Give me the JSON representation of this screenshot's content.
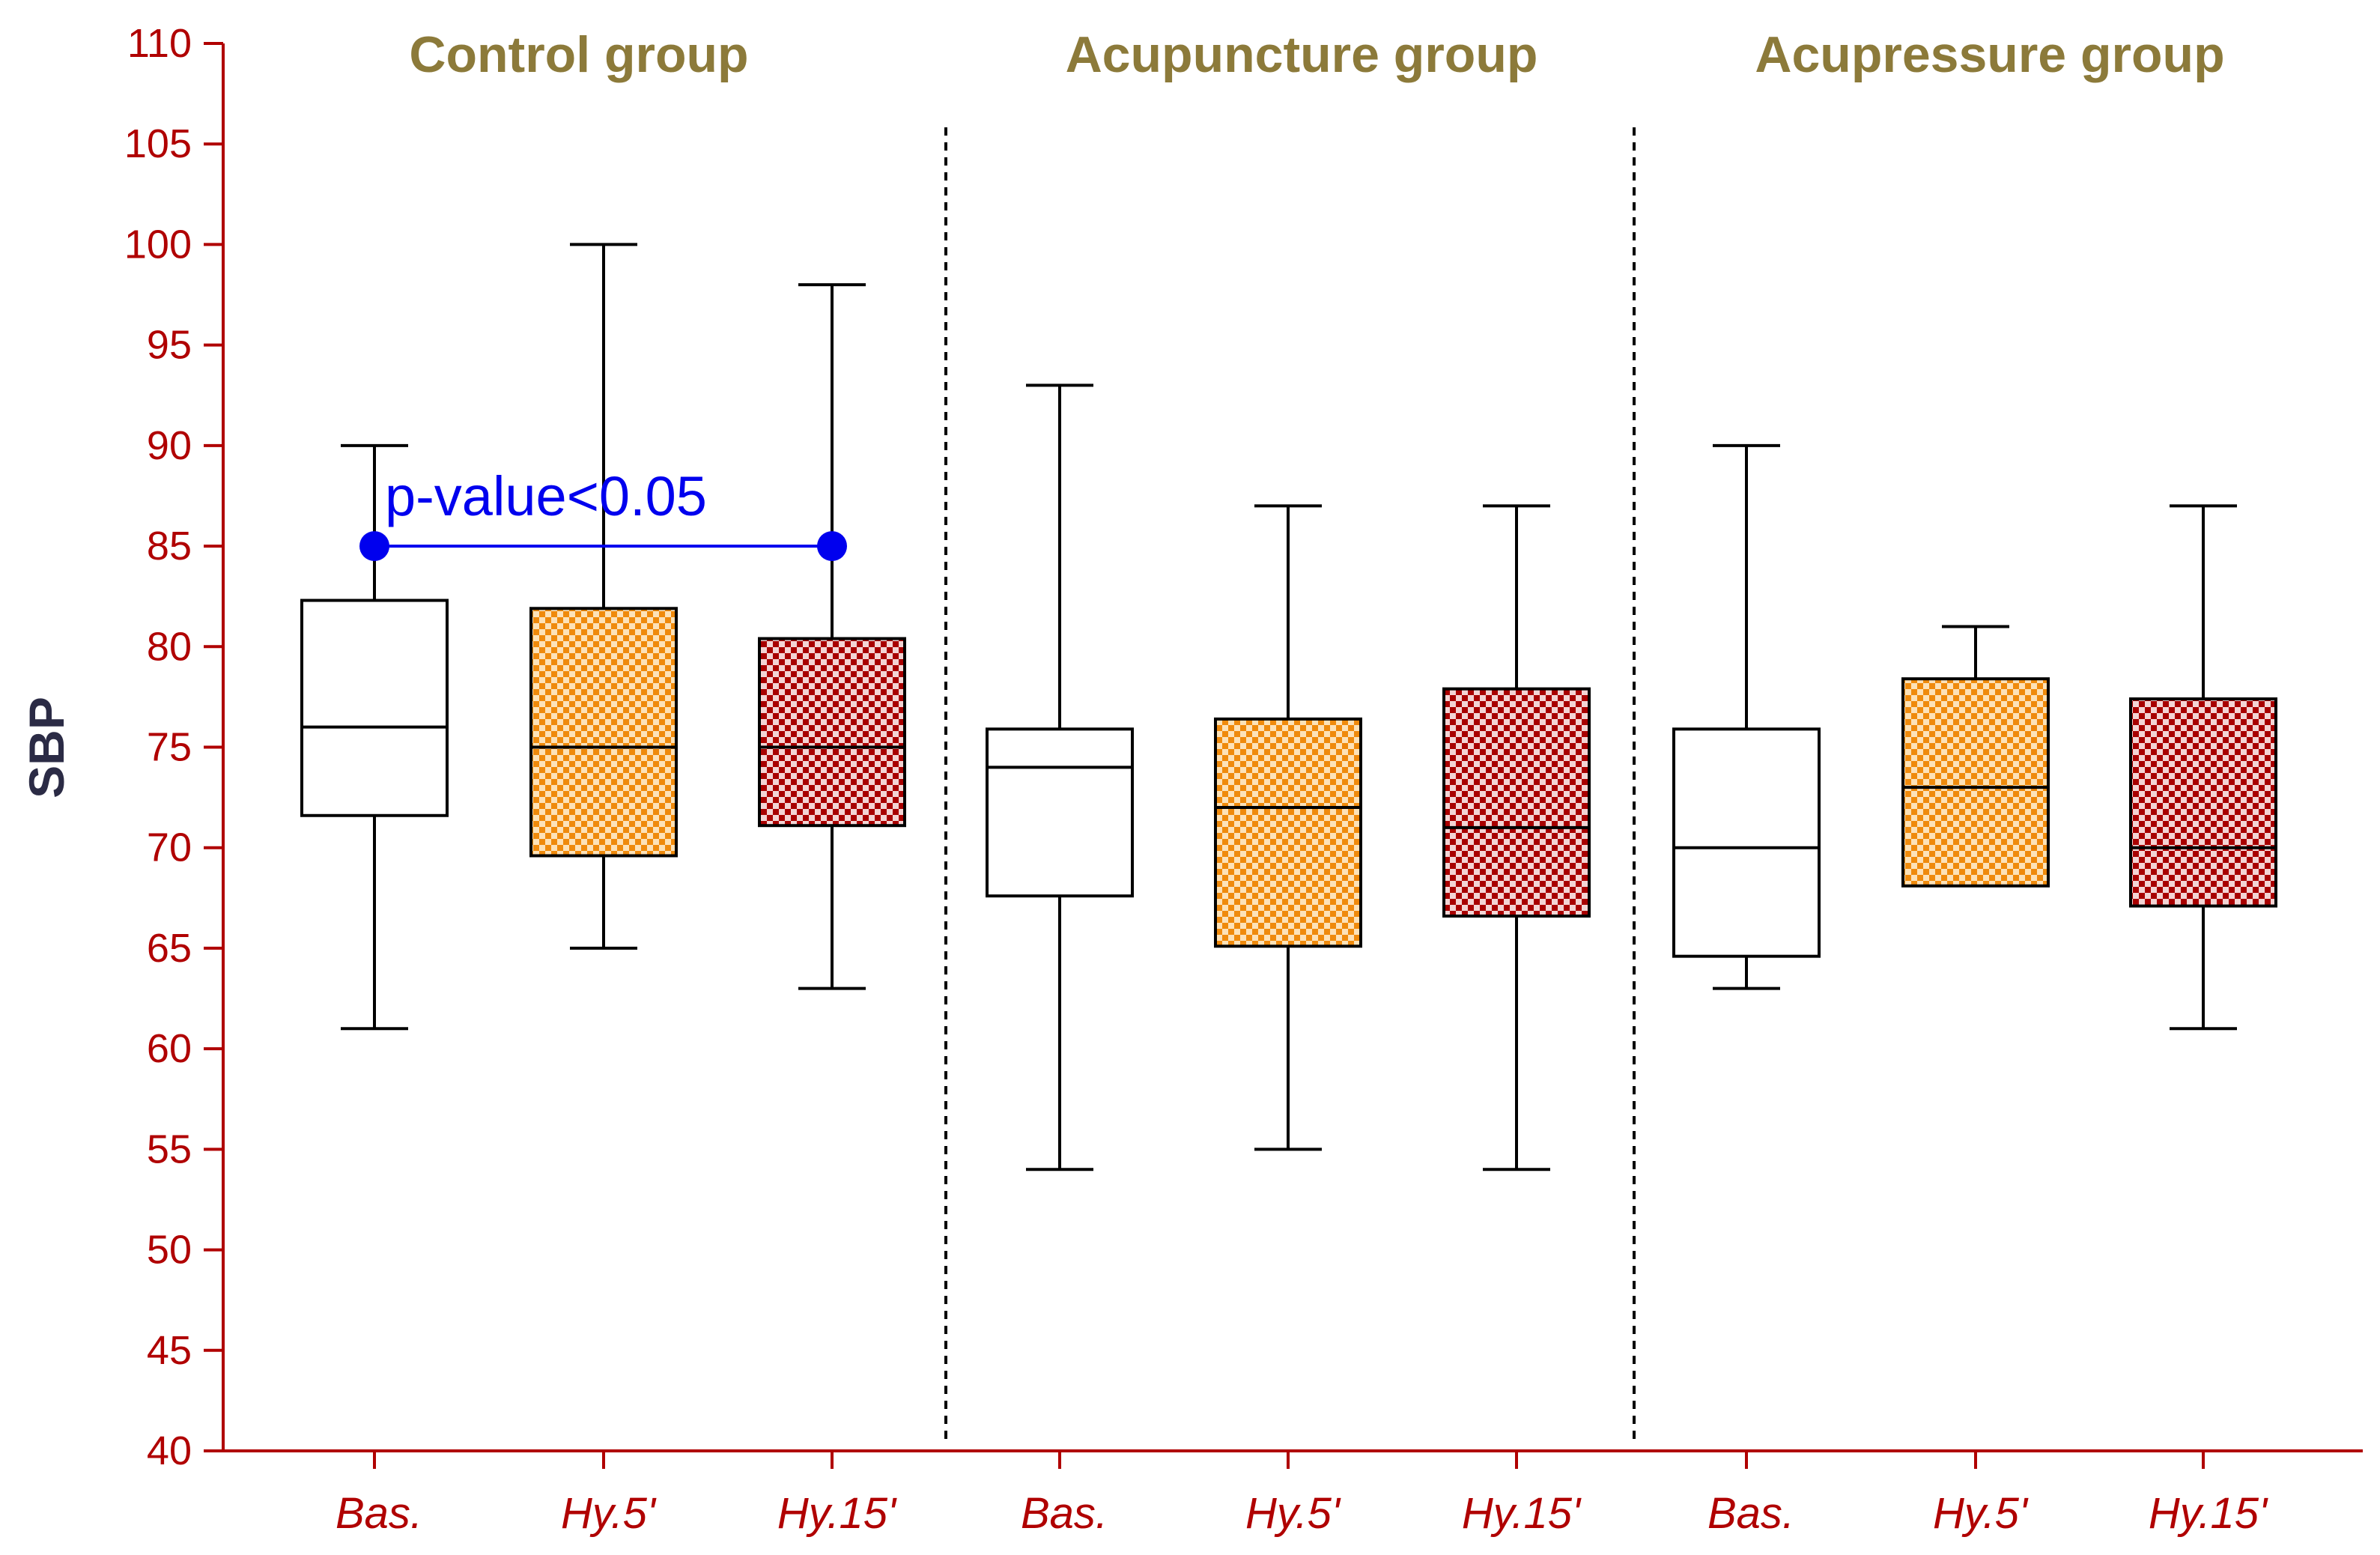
{
  "chart_data": {
    "type": "boxplot",
    "ylabel": "SBP",
    "xlabel": "",
    "ylim": [
      40,
      110
    ],
    "yticks": [
      "40",
      "45",
      "50",
      "55",
      "60",
      "65",
      "70",
      "75",
      "80",
      "85",
      "90",
      "95",
      "100",
      "105",
      "110"
    ],
    "colors": {
      "axis": "#b00000",
      "group_title": "#8c7a3a",
      "ylabel": "#2b2b45",
      "annotation": "#0000ee",
      "baseline_fill": "#ffffff",
      "hy5_light": "#fde2b8",
      "hy5_dark": "#ef8a0c",
      "hy15_light": "#f3d4d4",
      "hy15_dark": "#a80000"
    },
    "groups": [
      {
        "title": "Control group",
        "boxes": [
          {
            "label": "Bas.",
            "pattern": "baseline",
            "min": 61,
            "q1": 71.6,
            "median": 76,
            "q3": 82.3,
            "max": 90
          },
          {
            "label": "Hy.5'",
            "pattern": "hy5",
            "min": 65,
            "q1": 69.6,
            "median": 75,
            "q3": 81.9,
            "max": 100
          },
          {
            "label": "Hy.15'",
            "pattern": "hy15",
            "min": 63,
            "q1": 71.1,
            "median": 75,
            "q3": 80.4,
            "max": 98
          }
        ]
      },
      {
        "title": "Acupuncture group",
        "boxes": [
          {
            "label": "Bas.",
            "pattern": "baseline",
            "min": 54,
            "q1": 67.6,
            "median": 74,
            "q3": 75.9,
            "max": 93
          },
          {
            "label": "Hy.5'",
            "pattern": "hy5",
            "min": 55,
            "q1": 65.1,
            "median": 72,
            "q3": 76.4,
            "max": 87
          },
          {
            "label": "Hy.15'",
            "pattern": "hy15",
            "min": 54,
            "q1": 66.6,
            "median": 71,
            "q3": 77.9,
            "max": 87
          }
        ]
      },
      {
        "title": "Acupressure group",
        "boxes": [
          {
            "label": "Bas.",
            "pattern": "baseline",
            "min": 63,
            "q1": 64.6,
            "median": 70,
            "q3": 75.9,
            "max": 90
          },
          {
            "label": "Hy.5'",
            "pattern": "hy5",
            "min": 68.1,
            "q1": 68.1,
            "median": 73,
            "q3": 78.4,
            "max": 81
          },
          {
            "label": "Hy.15'",
            "pattern": "hy15",
            "min": 61,
            "q1": 67.1,
            "median": 70,
            "q3": 77.4,
            "max": 87
          }
        ]
      }
    ],
    "annotation": {
      "text": "p-value<0.05",
      "group_index": 0,
      "from_box": 0,
      "to_box": 2,
      "y": 85
    }
  }
}
